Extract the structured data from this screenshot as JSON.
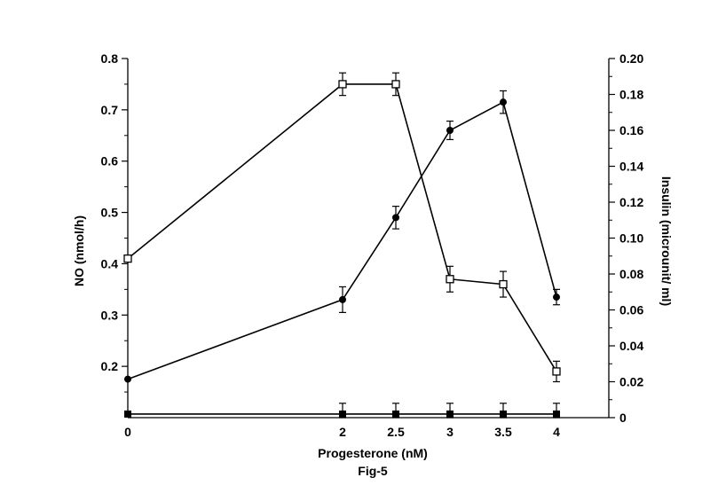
{
  "chart_data": {
    "type": "line",
    "caption": "Fig-5",
    "xlabel": "Progesterone (nM)",
    "ylabel_left": "NO (nmol/h)",
    "ylabel_right": "Insulin (microunit/ ml)",
    "x_ticks": [
      "0",
      "2",
      "2.5",
      "3",
      "3.5",
      "4"
    ],
    "y_left_ticks": [
      "0.2",
      "0.3",
      "0.4",
      "0.5",
      "0.6",
      "0.7",
      "0.8"
    ],
    "y_right_ticks": [
      "0",
      "0.02",
      "0.04",
      "0.06",
      "0.08",
      "0.10",
      "0.12",
      "0.14",
      "0.16",
      "0.18",
      "0.20"
    ],
    "x_categories": [
      0,
      2,
      2.5,
      3,
      3.5,
      4
    ],
    "ylim_left": [
      0.1,
      0.8
    ],
    "ylim_right": [
      0,
      0.2
    ],
    "grid": false,
    "series": [
      {
        "marker": "open-square",
        "axis": "left",
        "x": [
          0,
          2,
          2.5,
          3,
          3.5,
          4
        ],
        "y": [
          0.41,
          0.75,
          0.75,
          0.37,
          0.36,
          0.19
        ],
        "err": [
          0,
          0.022,
          0.022,
          0.025,
          0.025,
          0.02
        ]
      },
      {
        "marker": "filled-circle",
        "axis": "left",
        "x": [
          0,
          2,
          2.5,
          3,
          3.5,
          4
        ],
        "y": [
          0.175,
          0.33,
          0.49,
          0.66,
          0.715,
          0.335
        ],
        "err": [
          0,
          0.025,
          0.022,
          0.018,
          0.022,
          0.015
        ]
      },
      {
        "marker": "filled-square",
        "axis": "right",
        "x": [
          0,
          2,
          2.5,
          3,
          3.5,
          4
        ],
        "y": [
          0.002,
          0.002,
          0.002,
          0.002,
          0.002,
          0.002
        ],
        "err": [
          0,
          0.006,
          0.006,
          0.006,
          0.006,
          0.006
        ]
      }
    ]
  }
}
